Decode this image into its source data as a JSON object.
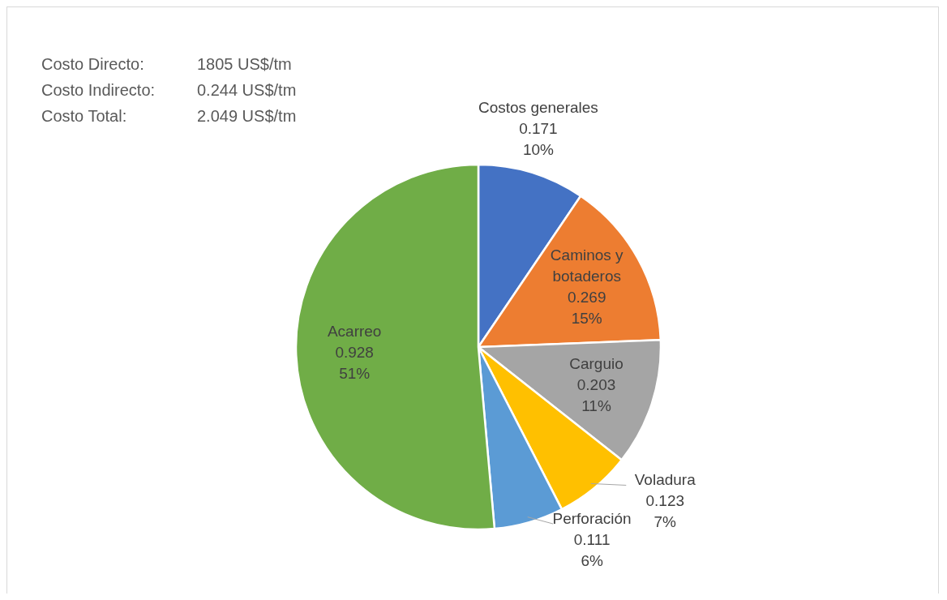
{
  "chart_data": {
    "type": "pie",
    "categories": [
      "Costos generales",
      "Caminos y botaderos",
      "Carguio",
      "Voladura",
      "Perforación",
      "Acarreo"
    ],
    "values": [
      0.171,
      0.269,
      0.203,
      0.123,
      0.111,
      0.928
    ],
    "colors": [
      "#4472c4",
      "#ed7d31",
      "#a5a5a5",
      "#ffc000",
      "#5b9bd5",
      "#70ad47"
    ],
    "value_labels": [
      "0.171\n10%",
      "0.269\n15%",
      "0.203\n11%",
      "0.123\n7%",
      "0.111\n6%",
      "0.928\n51%"
    ],
    "annotations": [
      "Costo Directo: 1805 US$/tm",
      "Costo Indirecto: 0.244 US$/tm",
      "Costo Total: 2.049 US$/tm"
    ]
  }
}
